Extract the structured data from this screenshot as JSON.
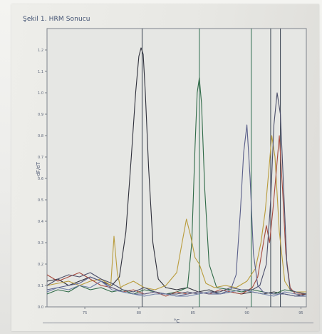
{
  "figure": {
    "title": "Şekil 1. HRM Sonucu"
  },
  "chart_data": {
    "type": "line",
    "title": "",
    "xlabel": "°C",
    "ylabel": "-dF/dT",
    "x_ticks": [
      75,
      80,
      85,
      90,
      95
    ],
    "y_ticks": [
      0,
      0.1,
      0.2,
      0.3,
      0.4,
      0.5,
      0.6,
      0.7,
      0.8,
      0.9,
      1.0,
      1.1,
      1.2
    ],
    "xlim": [
      71.5,
      95.5
    ],
    "ylim": [
      0,
      1.3
    ],
    "grid": false,
    "peak_markers": [
      {
        "x": 80.3,
        "label": "",
        "color": "#38424f"
      },
      {
        "x": 85.6,
        "label": "",
        "color": "#2c6c4e"
      },
      {
        "x": 90.4,
        "label": "",
        "color": "#2c6c4e"
      },
      {
        "x": 92.2,
        "label": "",
        "color": "#38424f"
      },
      {
        "x": 93.1,
        "label": "",
        "color": "#38424f"
      }
    ],
    "series": [
      {
        "color": "#2e2f3a",
        "x": [
          71.5,
          72.5,
          73.5,
          74.5,
          75.5,
          76.5,
          77.5,
          78.2,
          78.8,
          79.3,
          79.7,
          80.0,
          80.2,
          80.4,
          80.6,
          80.9,
          81.3,
          81.8,
          82.5,
          83.5,
          84.5,
          85.5,
          86.5,
          87.5,
          88.5,
          89.5,
          90.5,
          91.5,
          92.5,
          93.5,
          94.5,
          95.5
        ],
        "y": [
          0.12,
          0.13,
          0.1,
          0.12,
          0.14,
          0.12,
          0.1,
          0.14,
          0.35,
          0.7,
          1.0,
          1.17,
          1.21,
          1.18,
          1.0,
          0.65,
          0.3,
          0.13,
          0.09,
          0.08,
          0.09,
          0.07,
          0.08,
          0.06,
          0.07,
          0.06,
          0.07,
          0.06,
          0.07,
          0.06,
          0.05,
          0.06
        ]
      },
      {
        "color": "#2f6a47",
        "x": [
          71.5,
          72.5,
          73.5,
          74.5,
          75.5,
          76.5,
          77.5,
          78.5,
          79.5,
          80.5,
          81.5,
          82.5,
          83.5,
          84.5,
          84.9,
          85.2,
          85.4,
          85.6,
          85.8,
          86.1,
          86.5,
          87.2,
          88.5,
          89.5,
          90.5,
          91.5,
          92.5,
          93.5,
          94.5,
          95.5
        ],
        "y": [
          0.06,
          0.08,
          0.07,
          0.1,
          0.08,
          0.09,
          0.07,
          0.08,
          0.06,
          0.08,
          0.07,
          0.06,
          0.07,
          0.09,
          0.3,
          0.75,
          1.0,
          1.07,
          0.95,
          0.55,
          0.2,
          0.09,
          0.08,
          0.07,
          0.08,
          0.07,
          0.06,
          0.08,
          0.07,
          0.06
        ]
      },
      {
        "color": "#b99c3c",
        "x": [
          71.5,
          72.5,
          73.5,
          74.5,
          75.5,
          76.5,
          77.4,
          77.7,
          78.0,
          78.3,
          78.6,
          79.5,
          80.5,
          81.5,
          82.5,
          83.5,
          84.0,
          84.4,
          84.8,
          85.2,
          85.6,
          86.2,
          87.0,
          88.0,
          89.0,
          90.0,
          90.8,
          91.3,
          91.7,
          92.0,
          92.3,
          92.6,
          93.0,
          93.5,
          94.0,
          94.5,
          95.5
        ],
        "y": [
          0.1,
          0.11,
          0.12,
          0.1,
          0.12,
          0.13,
          0.1,
          0.33,
          0.16,
          0.09,
          0.1,
          0.12,
          0.09,
          0.08,
          0.1,
          0.16,
          0.3,
          0.41,
          0.33,
          0.23,
          0.2,
          0.11,
          0.09,
          0.1,
          0.09,
          0.12,
          0.18,
          0.3,
          0.45,
          0.62,
          0.8,
          0.7,
          0.35,
          0.12,
          0.08,
          0.07,
          0.07
        ]
      },
      {
        "color": "#a64a3e",
        "x": [
          71.5,
          72.5,
          73.5,
          74.5,
          75.5,
          76.5,
          77.5,
          78.5,
          79.5,
          80.5,
          81.5,
          82.5,
          83.5,
          84.5,
          85.5,
          86.5,
          87.5,
          88.5,
          89.5,
          90.5,
          91.0,
          91.4,
          91.8,
          92.1,
          92.4,
          92.7,
          93.0,
          93.3,
          93.6,
          94.0,
          94.5,
          95.5
        ],
        "y": [
          0.15,
          0.12,
          0.14,
          0.16,
          0.13,
          0.1,
          0.09,
          0.07,
          0.08,
          0.06,
          0.07,
          0.05,
          0.07,
          0.06,
          0.07,
          0.06,
          0.08,
          0.07,
          0.06,
          0.09,
          0.14,
          0.26,
          0.38,
          0.3,
          0.45,
          0.62,
          0.8,
          0.55,
          0.25,
          0.09,
          0.06,
          0.06
        ]
      },
      {
        "color": "#4b4e6a",
        "x": [
          71.5,
          72.5,
          73.5,
          74.5,
          75.5,
          76.5,
          77.5,
          78.5,
          79.5,
          80.5,
          81.5,
          82.5,
          83.5,
          84.5,
          85.5,
          86.5,
          87.5,
          88.5,
          89.5,
          90.5,
          91.2,
          91.8,
          92.2,
          92.5,
          92.8,
          93.1,
          93.4,
          93.7,
          94.0,
          94.5,
          95.5
        ],
        "y": [
          0.1,
          0.13,
          0.15,
          0.14,
          0.16,
          0.13,
          0.11,
          0.08,
          0.07,
          0.09,
          0.07,
          0.06,
          0.06,
          0.07,
          0.06,
          0.07,
          0.07,
          0.09,
          0.08,
          0.08,
          0.1,
          0.2,
          0.5,
          0.85,
          1.0,
          0.9,
          0.55,
          0.2,
          0.08,
          0.07,
          0.06
        ]
      },
      {
        "color": "#5a5f8a",
        "x": [
          71.5,
          72.5,
          73.5,
          74.5,
          75.5,
          76.5,
          77.5,
          78.5,
          79.5,
          80.5,
          81.5,
          82.5,
          83.5,
          84.5,
          85.5,
          86.5,
          87.5,
          88.5,
          89.0,
          89.4,
          89.7,
          90.0,
          90.3,
          90.6,
          91.0,
          91.5,
          92.5,
          93.5,
          94.5,
          95.5
        ],
        "y": [
          0.08,
          0.09,
          0.1,
          0.11,
          0.14,
          0.12,
          0.09,
          0.07,
          0.06,
          0.06,
          0.07,
          0.06,
          0.05,
          0.06,
          0.07,
          0.06,
          0.06,
          0.08,
          0.15,
          0.45,
          0.72,
          0.85,
          0.6,
          0.25,
          0.1,
          0.07,
          0.06,
          0.06,
          0.05,
          0.05
        ]
      },
      {
        "color": "#6f7fa8",
        "x": [
          71.5,
          72.5,
          73.5,
          74.5,
          75.5,
          76.5,
          77.5,
          78.5,
          79.5,
          80.5,
          81.5,
          82.5,
          83.5,
          84.5,
          85.5,
          86.5,
          87.5,
          88.5,
          89.5,
          90.5,
          91.5,
          92.5,
          93.5,
          94.5,
          95.5
        ],
        "y": [
          0.07,
          0.09,
          0.08,
          0.1,
          0.09,
          0.12,
          0.08,
          0.07,
          0.06,
          0.05,
          0.06,
          0.06,
          0.05,
          0.05,
          0.06,
          0.07,
          0.06,
          0.07,
          0.08,
          0.07,
          0.06,
          0.05,
          0.07,
          0.06,
          0.05
        ]
      }
    ]
  }
}
